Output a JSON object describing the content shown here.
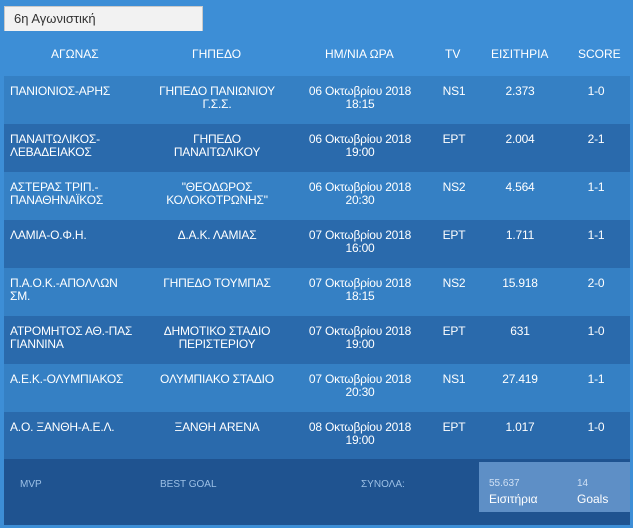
{
  "tab_label": "6η Αγωνιστική",
  "headers": {
    "match": "ΑΓΩΝΑΣ",
    "stadium": "ΓΗΠΕΔΟ",
    "datetime": "ΗΜ/ΝΙΑ ΩΡΑ",
    "tv": "TV",
    "tickets": "ΕΙΣΙΤΗΡΙΑ",
    "score": "SCORE"
  },
  "rows": [
    {
      "match_1": "ΠΑΝΙΟΝΙΟΣ-ΑΡΗΣ",
      "match_2": "",
      "stadium_1": "ΓΗΠΕΔΟ ΠΑΝΙΩΝΙΟΥ",
      "stadium_2": "Γ.Σ.Σ.",
      "date": "06 Οκτωβρίου 2018",
      "time": "18:15",
      "tv": "NS1",
      "tickets": "2.373",
      "score": "1-0"
    },
    {
      "match_1": "ΠΑΝΑΙΤΩΛΙΚΟΣ-",
      "match_2": "ΛΕΒΑΔΕΙΑΚΟΣ",
      "stadium_1": "ΓΗΠΕΔΟ",
      "stadium_2": "ΠΑΝΑΙΤΩΛΙΚΟΥ",
      "date": "06 Οκτωβρίου 2018",
      "time": "19:00",
      "tv": "ΕΡΤ",
      "tickets": "2.004",
      "score": "2-1"
    },
    {
      "match_1": "ΑΣΤΕΡΑΣ ΤΡΙΠ.-",
      "match_2": "ΠΑΝΑΘΗΝΑΪΚΟΣ",
      "stadium_1": "\"ΘΕΟΔΩΡΟΣ",
      "stadium_2": "ΚΟΛΟΚΟΤΡΩΝΗΣ\"",
      "date": "06 Οκτωβρίου 2018",
      "time": "20:30",
      "tv": "NS2",
      "tickets": "4.564",
      "score": "1-1"
    },
    {
      "match_1": "ΛΑΜΙΑ-Ο.Φ.Η.",
      "match_2": "",
      "stadium_1": "Δ.Α.Κ. ΛΑΜΙΑΣ",
      "stadium_2": "",
      "date": "07 Οκτωβρίου 2018",
      "time": "16:00",
      "tv": "ΕΡΤ",
      "tickets": "1.711",
      "score": "1-1"
    },
    {
      "match_1": "Π.Α.Ο.Κ.-ΑΠΟΛΛΩΝ",
      "match_2": "ΣΜ.",
      "stadium_1": "ΓΗΠΕΔΟ ΤΟΥΜΠΑΣ",
      "stadium_2": "",
      "date": "07 Οκτωβρίου 2018",
      "time": "18:15",
      "tv": "NS2",
      "tickets": "15.918",
      "score": "2-0"
    },
    {
      "match_1": "ΑΤΡΟΜΗΤΟΣ ΑΘ.-ΠΑΣ",
      "match_2": "ΓΙΑΝΝΙΝΑ",
      "stadium_1": "ΔΗΜΟΤΙΚΟ ΣΤΑΔΙΟ",
      "stadium_2": "ΠΕΡΙΣΤΕΡΙΟΥ",
      "date": "07 Οκτωβρίου 2018",
      "time": "19:00",
      "tv": "ΕΡΤ",
      "tickets": "631",
      "score": "1-0"
    },
    {
      "match_1": "Α.Ε.Κ.-ΟΛΥΜΠΙΑΚΟΣ",
      "match_2": "",
      "stadium_1": "ΟΛΥΜΠΙΑΚΟ ΣΤΑΔΙΟ",
      "stadium_2": "",
      "date": "07 Οκτωβρίου 2018",
      "time": "20:30",
      "tv": "NS1",
      "tickets": "27.419",
      "score": "1-1"
    },
    {
      "match_1": "Α.Ο. ΞΑΝΘΗ-Α.Ε.Λ.",
      "match_2": "",
      "stadium_1": "ΞΑΝΘΗ ARENA",
      "stadium_2": "",
      "date": "08 Οκτωβρίου 2018",
      "time": "19:00",
      "tv": "ΕΡΤ",
      "tickets": "1.017",
      "score": "1-0"
    }
  ],
  "footer": {
    "mvp_label": "MVP",
    "best_goal_label": "BEST GOAL",
    "totals_label": "ΣΥΝΟΛΑ:",
    "tickets_total": "55.637",
    "tickets_caption": "Εισιτήρια",
    "goals_total": "14",
    "goals_caption": "Goals"
  },
  "colors": {
    "frame": "#3d8ed6",
    "row_light": "#3580c4",
    "row_dark": "#2a6aac",
    "footer": "#1f5390",
    "totals_box": "#5e8fc6"
  }
}
